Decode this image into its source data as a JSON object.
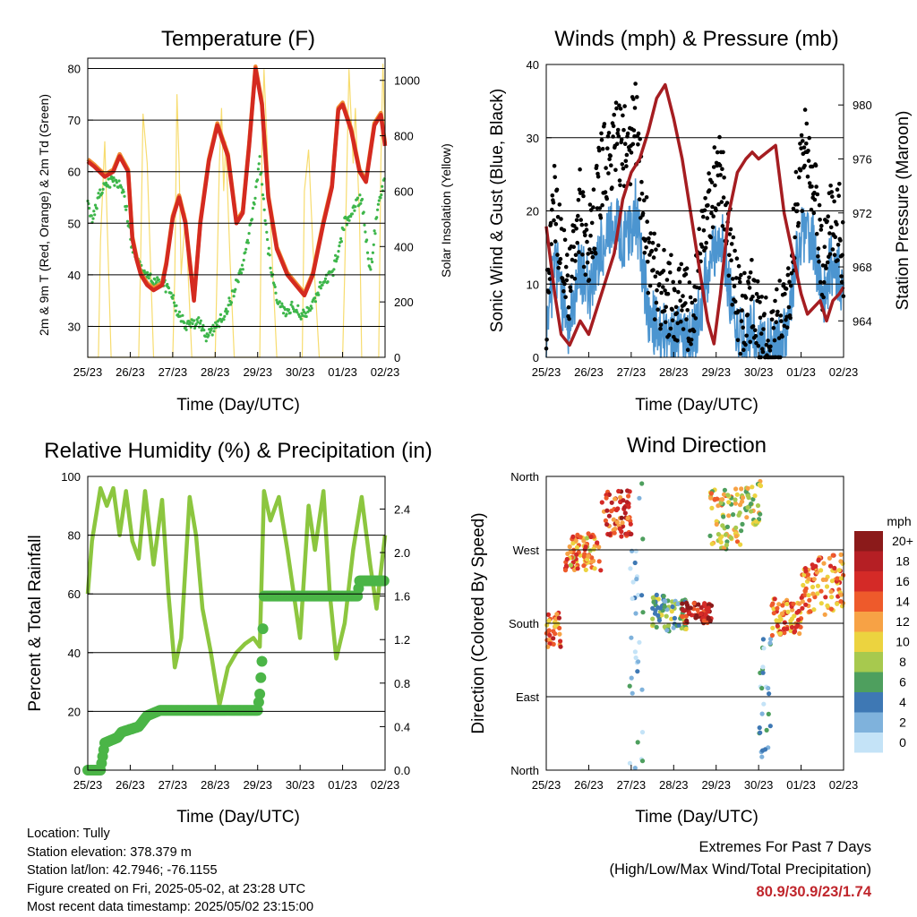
{
  "panels": {
    "temperature": {
      "title": "Temperature (F)",
      "ylabel_left": "2m & 9m T (Red, Orange) & 2m Td (Green)",
      "ylabel_right": "Solar Insolation (Yellow)",
      "xlabel": "Time (Day/UTC)"
    },
    "winds": {
      "title": "Winds (mph) & Pressure (mb)",
      "ylabel_left": "Sonic Wind & Gust (Blue, Black)",
      "ylabel_right": "Station Pressure (Maroon)",
      "xlabel": "Time (Day/UTC)"
    },
    "humidity": {
      "title": "Relative Humidity (%) & Precipitation (in)",
      "ylabel_left": "Percent & Total Rainfall",
      "xlabel": "Time (Day/UTC)"
    },
    "direction": {
      "title": "Wind Direction",
      "ylabel_left": "Direction (Colored By Speed)",
      "xlabel": "Time (Day/UTC)",
      "legend_title": "mph"
    }
  },
  "info": {
    "location": "Location: Tully",
    "elevation": "Station elevation: 378.379 m",
    "latlon": "Station lat/lon: 42.7946; -76.1155",
    "created": "Figure created on Fri, 2025-05-02, at 23:28 UTC",
    "recent": "Most recent data timestamp: 2025/05/02 23:15:00"
  },
  "extremes": {
    "title": "Extremes For Past 7 Days",
    "subtitle": "(High/Low/Max Wind/Total Precipitation)",
    "values": "80.9/30.9/23/1.74"
  },
  "colors": {
    "temp2m": "#d42a20",
    "temp9m": "#f08a30",
    "dewpoint": "#3db64a",
    "solar": "#f7dc6f",
    "gust": "#000000",
    "wind": "#4c95d0",
    "pressure": "#a51d21",
    "rh": "#8cc63f",
    "precip": "#4bb547"
  },
  "chart_data": [
    {
      "type": "line",
      "title": "Temperature (F)",
      "x_ticks": [
        "25/23",
        "26/23",
        "27/23",
        "28/23",
        "29/23",
        "30/23",
        "01/23",
        "02/23"
      ],
      "ylim": [
        24,
        82
      ],
      "y_ticks": [
        30,
        40,
        50,
        60,
        70,
        80
      ],
      "y2lim": [
        0,
        1080
      ],
      "y2_ticks": [
        0,
        200,
        400,
        600,
        800,
        1000
      ],
      "series": [
        {
          "key": "temp2m",
          "axis": "left",
          "x": [
            0,
            0.15,
            0.4,
            0.6,
            0.75,
            0.95,
            1.05,
            1.15,
            1.25,
            1.4,
            1.55,
            1.75,
            1.85,
            2.0,
            2.15,
            2.3,
            2.5,
            2.65,
            2.85,
            3.05,
            3.3,
            3.5,
            3.65,
            3.8,
            3.95,
            4.1,
            4.25,
            4.45,
            4.7,
            4.9,
            5.1,
            5.3,
            5.55,
            5.75,
            5.9,
            6.0,
            6.2,
            6.4,
            6.55,
            6.75,
            6.9,
            7.0
          ],
          "y": [
            62,
            61,
            59,
            60,
            63,
            60,
            47,
            43,
            40,
            38,
            37,
            38,
            42,
            51,
            55,
            50,
            35,
            50,
            62,
            69,
            63,
            50,
            52,
            65,
            80,
            73,
            55,
            45,
            40,
            38,
            36,
            40,
            50,
            57,
            72,
            73,
            68,
            60,
            58,
            69,
            71,
            65
          ]
        },
        {
          "key": "dewpoint",
          "axis": "left",
          "x": [
            0,
            0.1,
            0.25,
            0.45,
            0.65,
            0.85,
            1.05,
            1.3,
            1.55,
            1.8,
            1.95,
            2.1,
            2.3,
            2.6,
            2.8,
            3.0,
            3.2,
            3.4,
            3.65,
            3.85,
            4.05,
            4.25,
            4.45,
            4.65,
            4.85,
            5.05,
            5.25,
            5.5,
            5.75,
            5.9,
            6.05,
            6.25,
            6.45,
            6.65,
            6.85,
            7.0
          ],
          "y": [
            55,
            50,
            55,
            58,
            58,
            56,
            45,
            40,
            39,
            38,
            37,
            33,
            30,
            31,
            28,
            30,
            32,
            36,
            42,
            50,
            62,
            45,
            35,
            33,
            34,
            32,
            33,
            38,
            40,
            45,
            50,
            53,
            55,
            40,
            55,
            58
          ]
        },
        {
          "key": "solar",
          "axis": "right",
          "x": [
            0,
            0.25,
            0.3,
            0.4,
            0.55,
            0.95,
            1.2,
            1.25,
            1.3,
            1.4,
            1.55,
            1.9,
            2.0,
            2.05,
            2.1,
            2.15,
            2.2,
            2.3,
            2.45,
            2.85,
            3.0,
            3.05,
            3.1,
            3.15,
            3.2,
            3.25,
            3.35,
            3.45,
            3.85,
            4.05,
            4.1,
            4.15,
            4.2,
            4.3,
            4.45,
            4.85,
            5.05,
            5.1,
            5.2,
            5.3,
            5.45,
            5.85,
            6.0,
            6.05,
            6.15,
            6.25,
            6.3,
            6.4,
            6.45,
            6.85,
            6.9,
            6.95,
            7.0
          ],
          "y": [
            0,
            0,
            420,
            780,
            0,
            0,
            0,
            400,
            880,
            700,
            0,
            0,
            0,
            300,
            950,
            700,
            300,
            520,
            0,
            0,
            0,
            350,
            700,
            900,
            600,
            780,
            350,
            0,
            0,
            0,
            750,
            1040,
            850,
            500,
            0,
            0,
            0,
            600,
            750,
            400,
            0,
            0,
            0,
            300,
            1040,
            700,
            900,
            500,
            0,
            0,
            700,
            1060,
            800
          ]
        }
      ]
    },
    {
      "type": "line",
      "title": "Winds (mph) & Pressure (mb)",
      "x_ticks": [
        "25/23",
        "26/23",
        "27/23",
        "28/23",
        "29/23",
        "30/23",
        "01/23",
        "02/23"
      ],
      "ylim": [
        0,
        40
      ],
      "y_ticks": [
        0,
        10,
        20,
        30,
        40
      ],
      "y2lim": [
        961.3,
        983
      ],
      "y2_ticks": [
        964,
        968,
        972,
        976,
        980
      ],
      "series": [
        {
          "key": "gust",
          "axis": "left",
          "x": [
            0,
            0.2,
            0.5,
            0.8,
            1.0,
            1.3,
            1.6,
            1.9,
            2.1,
            2.4,
            2.6,
            2.9,
            3.1,
            3.4,
            3.6,
            3.9,
            4.1,
            4.4,
            4.6,
            4.9,
            5.1,
            5.4,
            5.7,
            5.9,
            6.1,
            6.3,
            6.5,
            6.7,
            6.9,
            7.0
          ],
          "y": [
            5,
            22,
            8,
            20,
            14,
            25,
            30,
            28,
            32,
            14,
            10,
            8,
            8,
            6,
            12,
            22,
            26,
            12,
            5,
            8,
            2,
            3,
            8,
            22,
            28,
            24,
            12,
            20,
            18,
            12
          ]
        },
        {
          "key": "wind",
          "axis": "left",
          "x": [
            0,
            0.2,
            0.5,
            0.8,
            1.0,
            1.3,
            1.6,
            1.9,
            2.1,
            2.4,
            2.6,
            2.9,
            3.1,
            3.4,
            3.6,
            3.9,
            4.1,
            4.4,
            4.6,
            4.9,
            5.1,
            5.4,
            5.7,
            5.9,
            6.1,
            6.3,
            6.5,
            6.7,
            6.9,
            7.0
          ],
          "y": [
            2,
            14,
            4,
            12,
            9,
            15,
            18,
            16,
            20,
            6,
            4,
            3,
            3,
            2,
            6,
            14,
            17,
            6,
            2,
            4,
            1,
            1,
            4,
            14,
            18,
            15,
            7,
            13,
            11,
            7
          ]
        },
        {
          "key": "pressure",
          "axis": "right",
          "x": [
            0,
            0.2,
            0.35,
            0.55,
            0.8,
            1.0,
            1.2,
            1.4,
            1.6,
            1.8,
            2.0,
            2.2,
            2.4,
            2.6,
            2.8,
            3.0,
            3.2,
            3.4,
            3.6,
            3.8,
            3.95,
            4.1,
            4.3,
            4.5,
            4.7,
            4.85,
            5.0,
            5.2,
            5.4,
            5.6,
            5.8,
            6.0,
            6.15,
            6.3,
            6.45,
            6.6,
            6.75,
            6.9,
            7.0
          ],
          "y": [
            971,
            966,
            963,
            962.2,
            964,
            963,
            965,
            967,
            969,
            973,
            975,
            976,
            978,
            980.5,
            981.5,
            979,
            976,
            972,
            968,
            964,
            962.3,
            966,
            972,
            975,
            976,
            976.5,
            976,
            976.5,
            977,
            972,
            969,
            966,
            964.5,
            965,
            965.5,
            964,
            965.5,
            966,
            966.5
          ]
        }
      ]
    },
    {
      "type": "line",
      "title": "Relative Humidity (%) & Precipitation (in)",
      "x_ticks": [
        "25/23",
        "26/23",
        "27/23",
        "28/23",
        "29/23",
        "30/23",
        "01/23",
        "02/23"
      ],
      "ylim": [
        0,
        100
      ],
      "y_ticks": [
        0,
        20,
        40,
        60,
        80,
        100
      ],
      "y2lim": [
        0,
        2.7
      ],
      "y2_ticks": [
        0.0,
        0.4,
        0.8,
        1.2,
        1.6,
        2.0,
        2.4
      ],
      "series": [
        {
          "key": "rh",
          "axis": "left",
          "x": [
            0,
            0.1,
            0.3,
            0.45,
            0.6,
            0.75,
            0.9,
            1.05,
            1.2,
            1.35,
            1.55,
            1.75,
            1.9,
            2.05,
            2.2,
            2.4,
            2.55,
            2.7,
            2.9,
            3.1,
            3.3,
            3.5,
            3.7,
            3.9,
            4.05,
            4.15,
            4.3,
            4.5,
            4.7,
            4.85,
            5.0,
            5.2,
            5.35,
            5.55,
            5.7,
            5.85,
            6.05,
            6.25,
            6.45,
            6.65,
            6.8,
            7.0
          ],
          "y": [
            60,
            78,
            96,
            90,
            96,
            80,
            95,
            78,
            72,
            95,
            70,
            92,
            60,
            35,
            45,
            93,
            80,
            55,
            40,
            22,
            35,
            40,
            43,
            45,
            42,
            95,
            85,
            93,
            75,
            60,
            45,
            90,
            75,
            95,
            60,
            38,
            50,
            75,
            93,
            70,
            55,
            80
          ]
        },
        {
          "key": "precip",
          "axis": "right",
          "x": [
            0,
            0.3,
            0.4,
            0.7,
            0.8,
            1.2,
            1.4,
            1.7,
            4.0,
            4.05,
            4.1,
            4.15,
            6.35,
            6.4,
            7.0
          ],
          "y": [
            0,
            0,
            0.25,
            0.3,
            0.35,
            0.4,
            0.5,
            0.55,
            0.55,
            0.7,
            1.0,
            1.6,
            1.6,
            1.74,
            1.74
          ]
        }
      ]
    },
    {
      "type": "scatter",
      "title": "Wind Direction",
      "x_ticks": [
        "25/23",
        "26/23",
        "27/23",
        "28/23",
        "29/23",
        "30/23",
        "01/23",
        "02/23"
      ],
      "ylim": [
        0,
        360
      ],
      "y_ticks": [
        "North",
        "East",
        "South",
        "West",
        "North"
      ],
      "color_legend": {
        "title": "mph",
        "labels": [
          "20+",
          "18",
          "16",
          "14",
          "12",
          "10",
          "8",
          "6",
          "4",
          "2",
          "0"
        ],
        "colors": [
          "#8b1a1a",
          "#b51f24",
          "#d42a27",
          "#ee5a2b",
          "#f7a245",
          "#ecd33f",
          "#a7c94e",
          "#4e9f5e",
          "#3e78b4",
          "#7fb2dc",
          "#c4e3f7"
        ]
      },
      "groups": [
        {
          "x0": 0.0,
          "x1": 0.35,
          "y0": 150,
          "y1": 195,
          "speed": 14
        },
        {
          "x0": 0.45,
          "x1": 1.3,
          "y0": 245,
          "y1": 290,
          "speed": 12
        },
        {
          "x0": 1.3,
          "x1": 2.0,
          "y0": 285,
          "y1": 345,
          "speed": 16
        },
        {
          "x0": 1.95,
          "x1": 2.3,
          "y0": 0,
          "y1": 360,
          "speed": 2
        },
        {
          "x0": 2.5,
          "x1": 3.3,
          "y0": 170,
          "y1": 215,
          "speed": 6
        },
        {
          "x0": 3.2,
          "x1": 3.9,
          "y0": 180,
          "y1": 205,
          "speed": 17
        },
        {
          "x0": 3.85,
          "x1": 4.6,
          "y0": 270,
          "y1": 345,
          "speed": 10
        },
        {
          "x0": 4.6,
          "x1": 5.05,
          "y0": 300,
          "y1": 355,
          "speed": 9
        },
        {
          "x0": 5.0,
          "x1": 5.3,
          "y0": 5,
          "y1": 190,
          "speed": 3
        },
        {
          "x0": 5.3,
          "x1": 6.0,
          "y0": 165,
          "y1": 210,
          "speed": 13
        },
        {
          "x0": 6.0,
          "x1": 7.0,
          "y0": 190,
          "y1": 265,
          "speed": 13
        }
      ]
    }
  ]
}
